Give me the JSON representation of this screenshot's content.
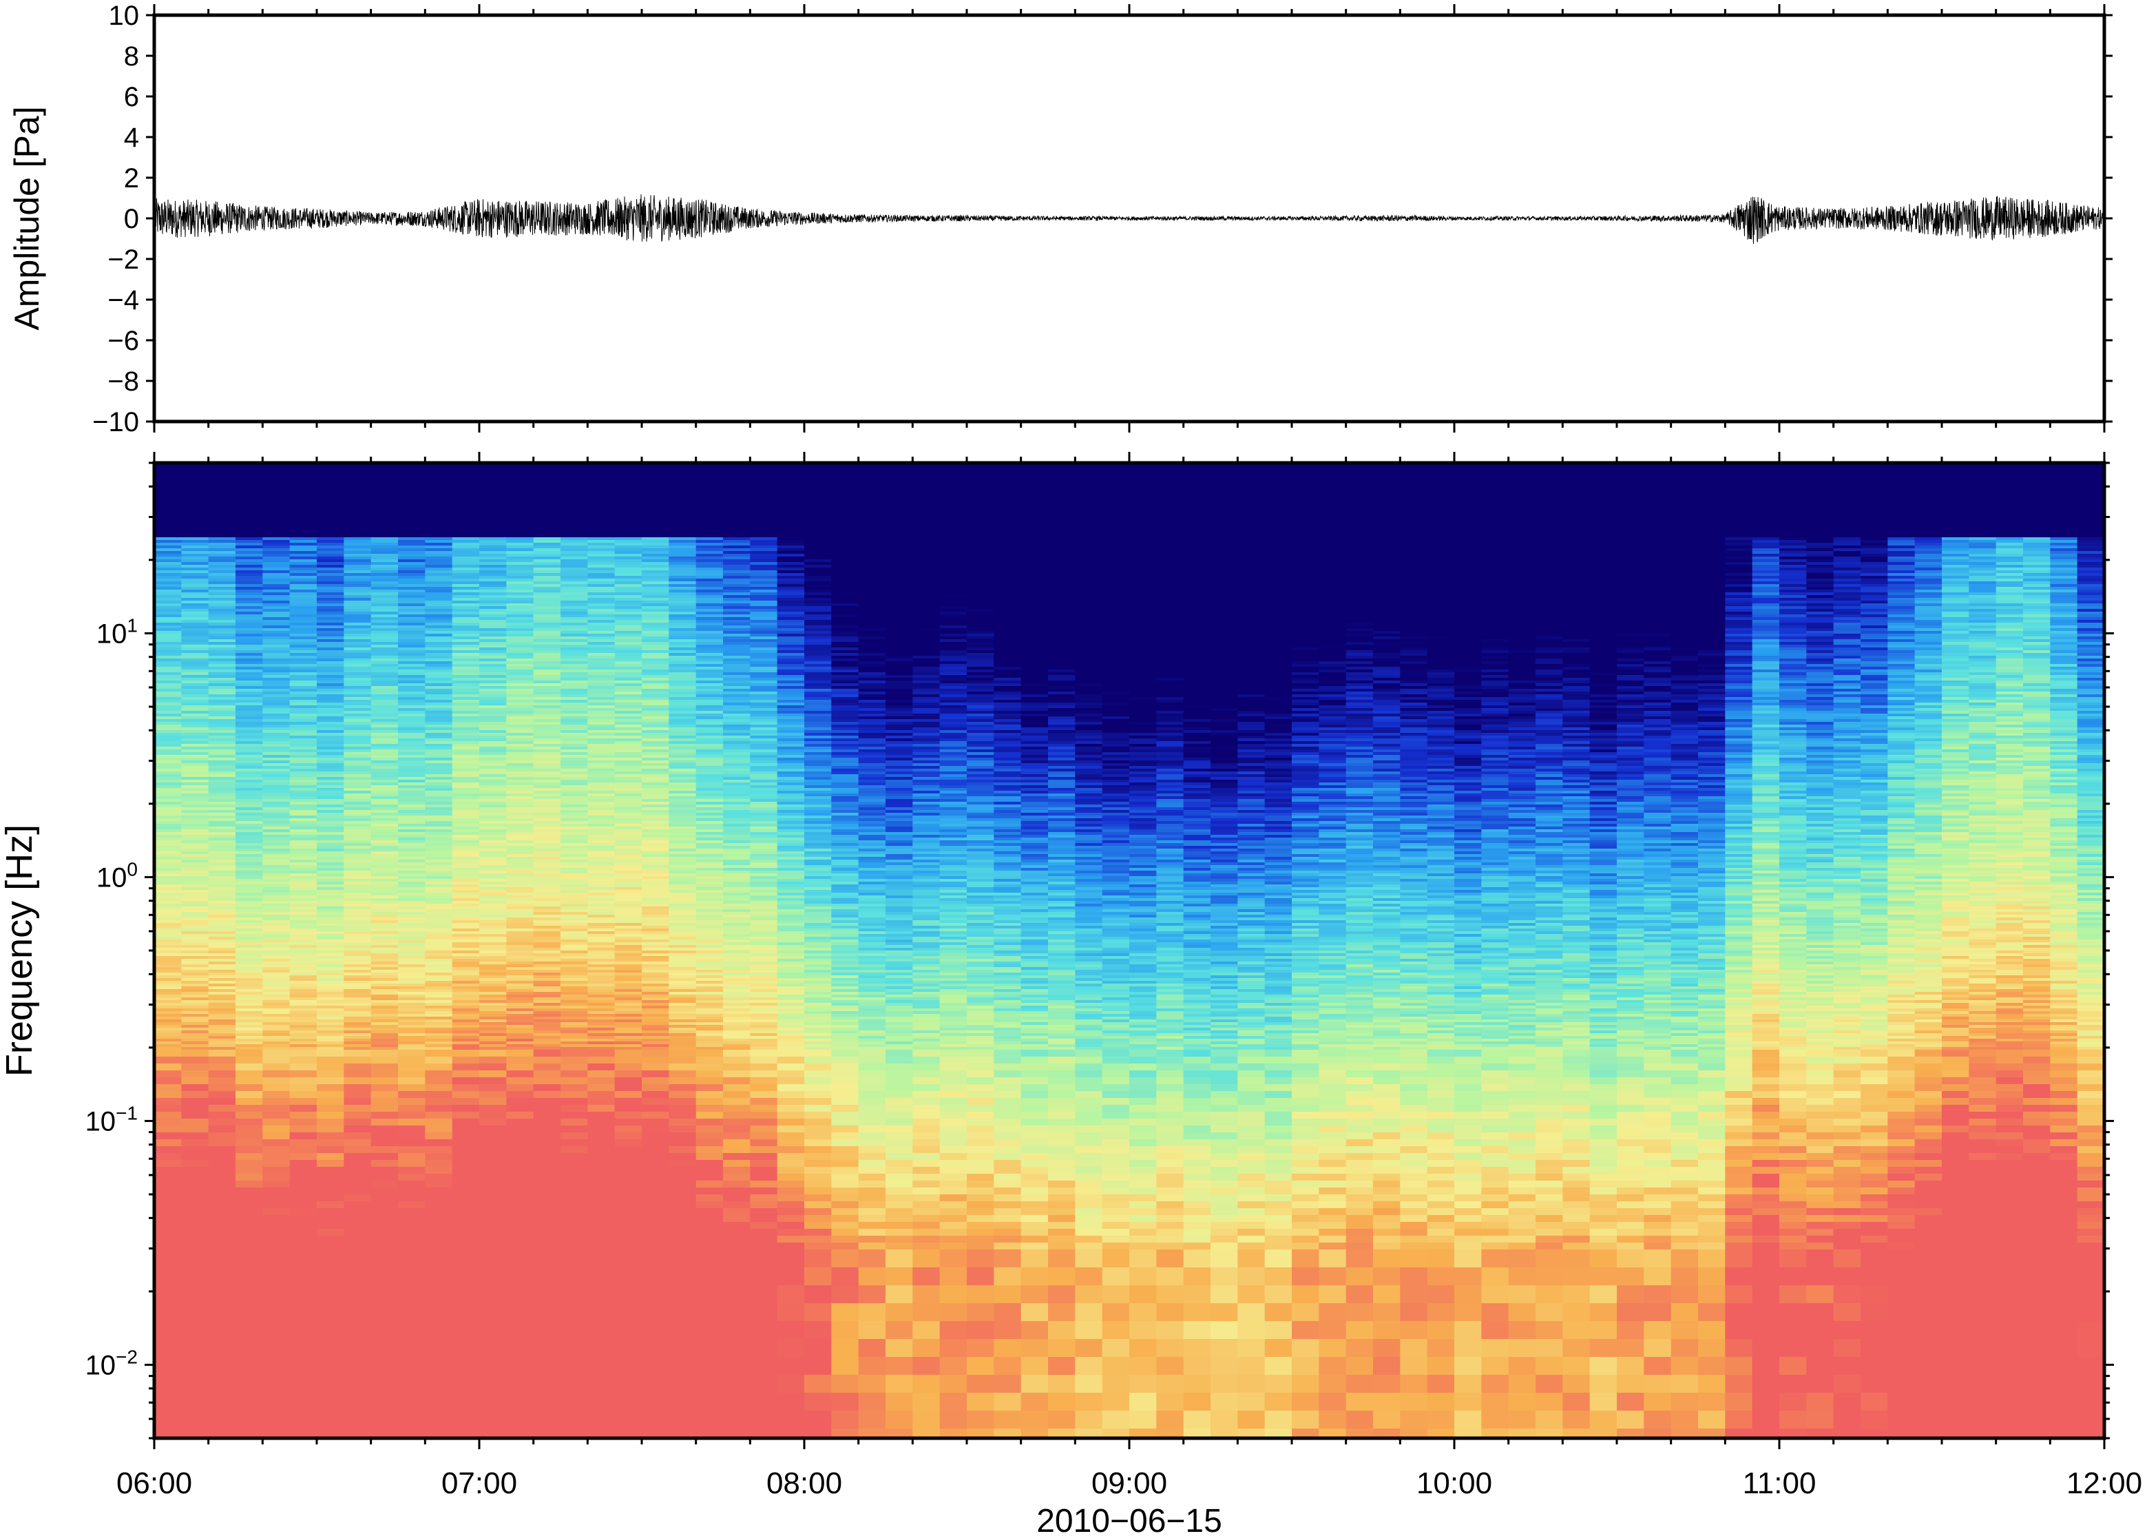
{
  "chart_data": [
    {
      "type": "line",
      "ylabel": "Amplitude [Pa]",
      "ylim": [
        -10,
        10
      ],
      "yticks": [
        "10",
        "8",
        "6",
        "4",
        "2",
        "0",
        "−2",
        "−4",
        "−6",
        "−8",
        "−10"
      ],
      "ytick_values": [
        10,
        8,
        6,
        4,
        2,
        0,
        -2,
        -4,
        -6,
        -8,
        -10
      ],
      "xlim": [
        "06:00",
        "12:00"
      ],
      "grid": false,
      "series": [
        {
          "color": "#000000",
          "x_minutes_note_free": true,
          "envelope_time": [
            "06:00",
            "06:10",
            "06:20",
            "06:30",
            "06:40",
            "06:50",
            "07:00",
            "07:10",
            "07:20",
            "07:30",
            "07:40",
            "07:50",
            "08:00",
            "08:10",
            "08:20",
            "08:30",
            "08:40",
            "08:50",
            "09:00",
            "09:10",
            "09:20",
            "09:30",
            "09:40",
            "09:50",
            "10:00",
            "10:10",
            "10:20",
            "10:30",
            "10:40",
            "10:50",
            "10:55",
            "11:00",
            "11:10",
            "11:20",
            "11:30",
            "11:40",
            "11:50",
            "12:00"
          ],
          "envelope_amplitude": [
            1.0,
            0.9,
            0.6,
            0.5,
            0.3,
            0.4,
            1.0,
            0.9,
            0.8,
            1.2,
            1.0,
            0.5,
            0.3,
            0.2,
            0.15,
            0.15,
            0.12,
            0.1,
            0.1,
            0.1,
            0.1,
            0.1,
            0.12,
            0.15,
            0.1,
            0.1,
            0.1,
            0.12,
            0.15,
            0.2,
            1.3,
            0.6,
            0.5,
            0.6,
            0.9,
            1.1,
            0.9,
            0.5
          ]
        }
      ]
    },
    {
      "type": "heatmap",
      "xlabel": "2010−06−15",
      "ylabel": "Frequency [Hz]",
      "yscale": "log",
      "ylim": [
        0.005,
        50
      ],
      "yticks": [
        {
          "value": 10,
          "base": "10",
          "exp": "1"
        },
        {
          "value": 1,
          "base": "10",
          "exp": "0"
        },
        {
          "value": 0.1,
          "base": "10",
          "exp": "−1"
        },
        {
          "value": 0.01,
          "base": "10",
          "exp": "−2"
        }
      ],
      "xlim": [
        "06:00",
        "12:00"
      ],
      "xticks": [
        "06:00",
        "07:00",
        "08:00",
        "09:00",
        "10:00",
        "11:00",
        "12:00"
      ],
      "colormap": "rainbow (blue low → red high)",
      "colors": [
        "#0a0070",
        "#1530d0",
        "#2aa0f0",
        "#5ae0e0",
        "#b8f5a0",
        "#f5ee90",
        "#f8b050",
        "#f06060"
      ],
      "activity_time": [
        "06:00",
        "06:30",
        "07:00",
        "07:30",
        "07:50",
        "08:10",
        "08:40",
        "09:00",
        "09:30",
        "09:40",
        "10:00",
        "10:30",
        "10:50",
        "10:55",
        "11:00",
        "11:15",
        "11:30",
        "11:45",
        "12:00"
      ],
      "activity_level": [
        0.85,
        0.75,
        0.9,
        0.95,
        0.7,
        0.35,
        0.3,
        0.2,
        0.2,
        0.4,
        0.3,
        0.25,
        0.3,
        0.8,
        0.6,
        0.55,
        0.85,
        0.9,
        0.6
      ]
    }
  ]
}
